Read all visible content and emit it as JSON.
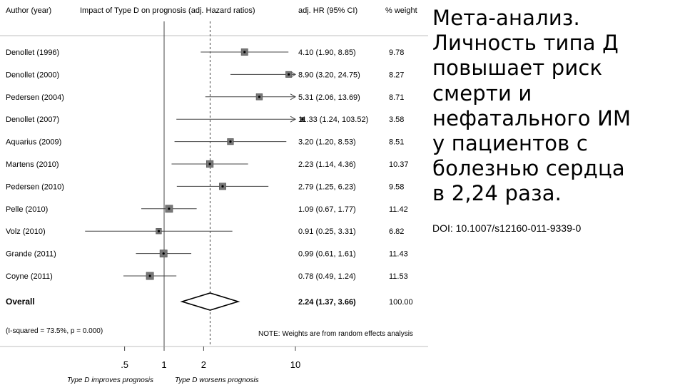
{
  "chart_data": {
    "type": "forest",
    "headers": {
      "study": "Author (year)",
      "title": "Impact of Type D on prognosis (adj. Hazard ratios)",
      "hr": "adj. HR (95% CI)",
      "weight": "% weight"
    },
    "x_scale": "log",
    "xlim": [
      0.36,
      12
    ],
    "x_ticks": [
      {
        "value": 0.5,
        "label": ".5"
      },
      {
        "value": 1,
        "label": "1"
      },
      {
        "value": 2,
        "label": "2"
      },
      {
        "value": 10,
        "label": "10"
      }
    ],
    "reference_line": 1,
    "overall_line": 2.24,
    "studies": [
      {
        "name": "Denollet (1996)",
        "hr": 4.1,
        "lo": 1.9,
        "hi": 8.85,
        "ci_text": "4.10 (1.90, 8.85)",
        "weight": "9.78",
        "arrow": false
      },
      {
        "name": "Denollet (2000)",
        "hr": 8.9,
        "lo": 3.2,
        "hi": 24.75,
        "ci_text": "8.90 (3.20, 24.75)",
        "weight": "8.27",
        "arrow": true
      },
      {
        "name": "Pedersen (2004)",
        "hr": 5.31,
        "lo": 2.06,
        "hi": 13.69,
        "ci_text": "5.31 (2.06, 13.69)",
        "weight": "8.71",
        "arrow": true
      },
      {
        "name": "Denollet (2007)",
        "hr": 11.33,
        "lo": 1.24,
        "hi": 103.52,
        "ci_text": "11.33 (1.24, 103.52)",
        "weight": "3.58",
        "arrow": true
      },
      {
        "name": "Aquarius (2009)",
        "hr": 3.2,
        "lo": 1.2,
        "hi": 8.53,
        "ci_text": "3.20 (1.20, 8.53)",
        "weight": "8.51",
        "arrow": false
      },
      {
        "name": "Martens (2010)",
        "hr": 2.23,
        "lo": 1.14,
        "hi": 4.36,
        "ci_text": "2.23 (1.14, 4.36)",
        "weight": "10.37",
        "arrow": false
      },
      {
        "name": "Pedersen (2010)",
        "hr": 2.79,
        "lo": 1.25,
        "hi": 6.23,
        "ci_text": "2.79 (1.25, 6.23)",
        "weight": "9.58",
        "arrow": false
      },
      {
        "name": "Pelle (2010)",
        "hr": 1.09,
        "lo": 0.67,
        "hi": 1.77,
        "ci_text": "1.09 (0.67, 1.77)",
        "weight": "11.42",
        "arrow": false
      },
      {
        "name": "Volz (2010)",
        "hr": 0.91,
        "lo": 0.25,
        "hi": 3.31,
        "ci_text": "0.91 (0.25, 3.31)",
        "weight": "6.82",
        "arrow": false
      },
      {
        "name": "Grande (2011)",
        "hr": 0.99,
        "lo": 0.61,
        "hi": 1.61,
        "ci_text": "0.99 (0.61, 1.61)",
        "weight": "11.43",
        "arrow": false
      },
      {
        "name": "Coyne (2011)",
        "hr": 0.78,
        "lo": 0.49,
        "hi": 1.24,
        "ci_text": "0.78 (0.49, 1.24)",
        "weight": "11.53",
        "arrow": false
      }
    ],
    "overall": {
      "name": "Overall",
      "hr": 2.24,
      "lo": 1.37,
      "hi": 3.66,
      "ci_text": "2.24 (1.37, 3.66)",
      "weight": "100.00"
    },
    "heterogeneity": "(I-squared = 73.5%, p = 0.000)",
    "note": "NOTE: Weights are from random effects analysis",
    "footer_left": "Type D improves prognosis",
    "footer_right": "Type D worsens prognosis"
  },
  "side": {
    "title": "Мета-анализ.\nЛичность типа Д\nповышает риск\nсмерти и\nнефатального ИМ\nу пациентов с\nболезнью сердца\nв 2,24 раза.",
    "doi": "DOI: 10.1007/s12160-011-9339-0"
  },
  "colors": {
    "background": "#ffffff",
    "text": "#000000",
    "line": "#444444",
    "box": "#777777",
    "rule": "#bfbfbf"
  }
}
